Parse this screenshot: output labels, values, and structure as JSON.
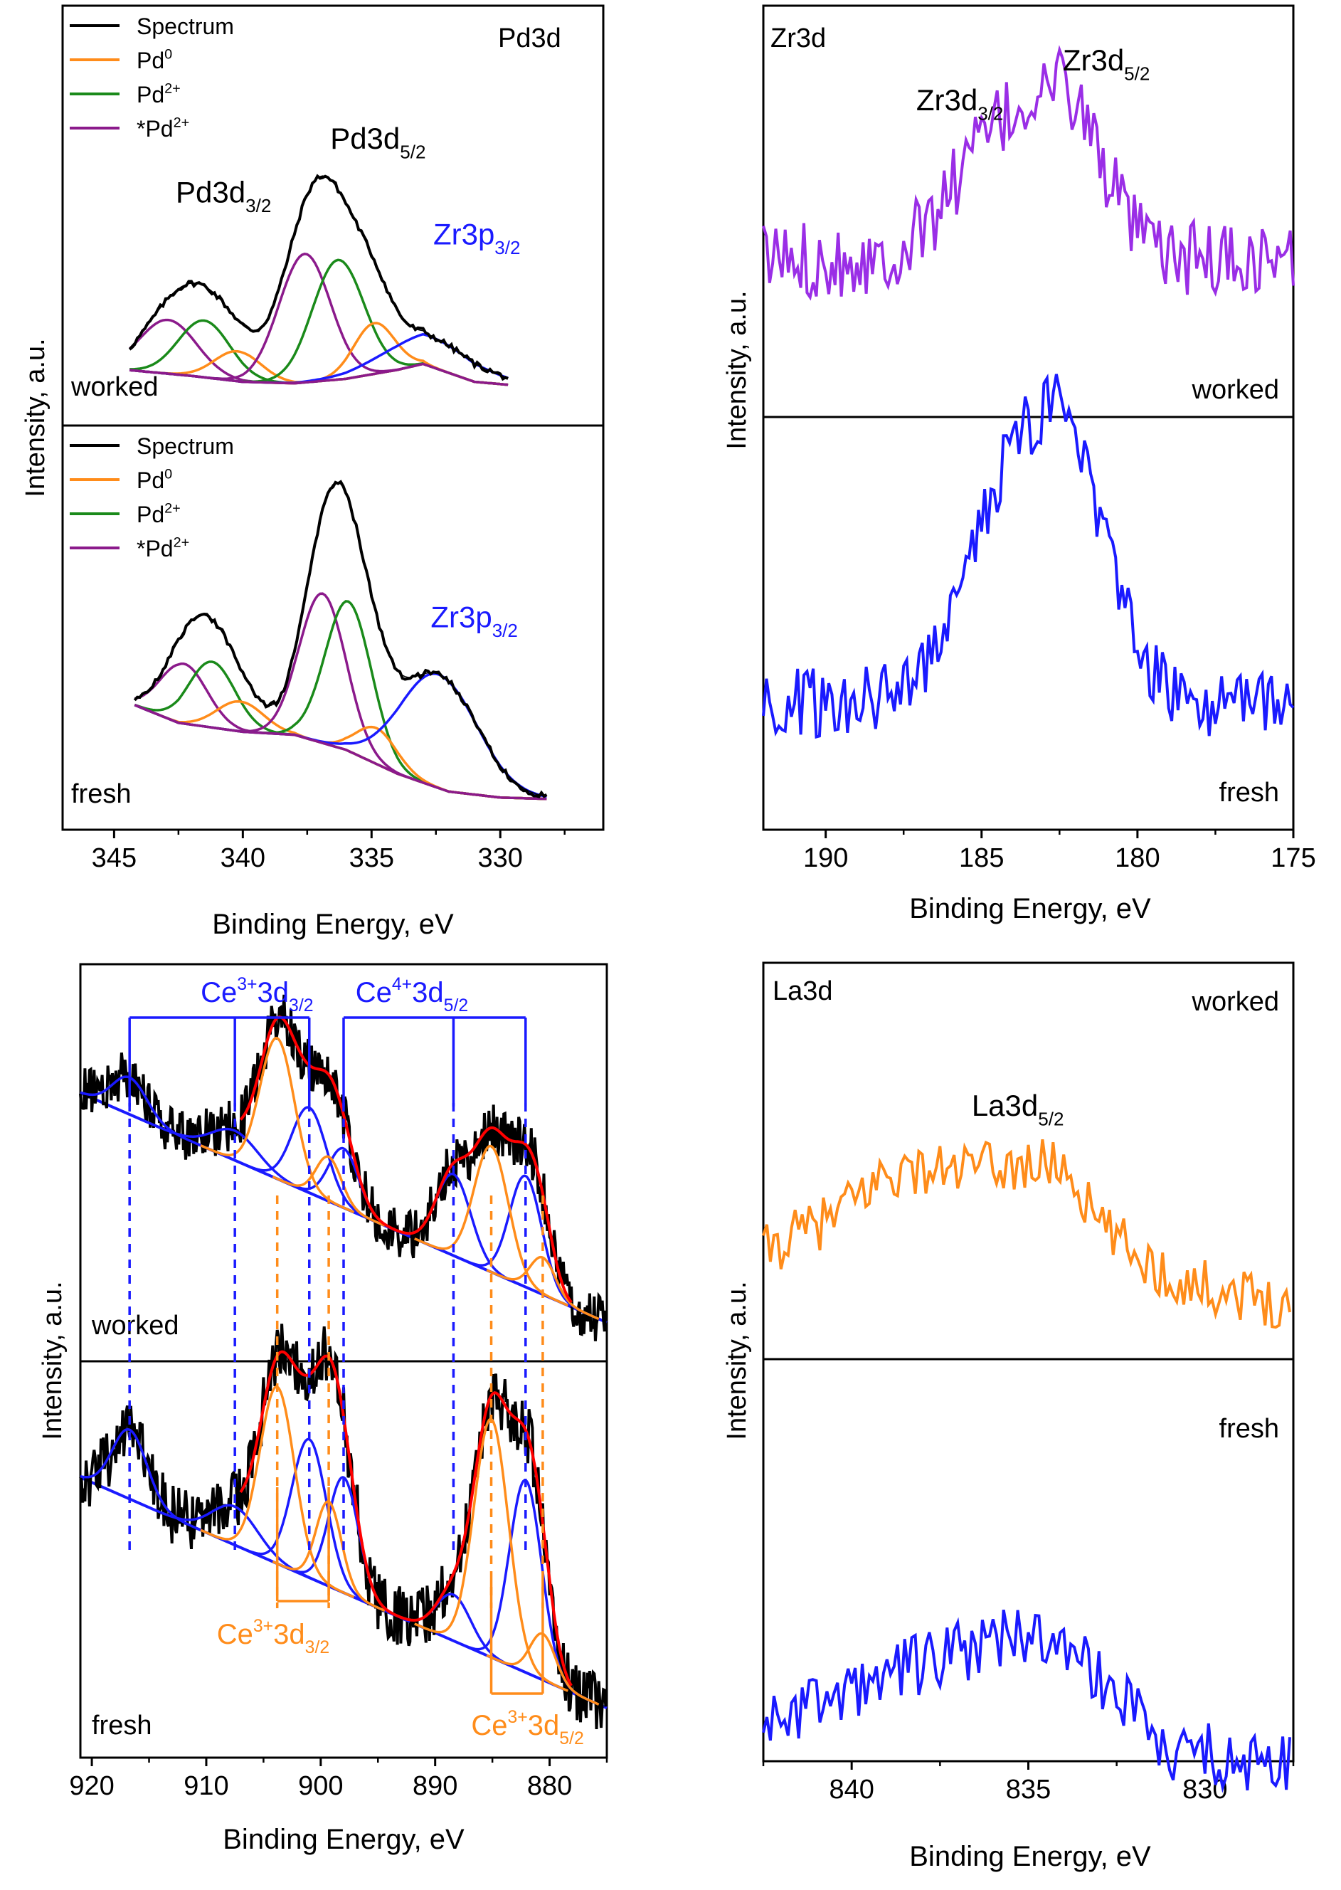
{
  "figure": {
    "ylabel": "Intensity, a.u.",
    "xlabel": "Binding Energy, eV"
  },
  "chart_data": [
    {
      "id": "pd3d",
      "type": "line",
      "title": "Pd3d",
      "xlabel": "Binding Energy, eV",
      "ylabel": "Intensity, a.u.",
      "xlim": [
        347,
        326
      ],
      "xticks": [
        345,
        340,
        335,
        330
      ],
      "panels": [
        "worked",
        "fresh"
      ],
      "worked": {
        "label": "worked",
        "legend": [
          {
            "name": "Spectrum",
            "color": "#000000"
          },
          {
            "name": "Pd",
            "sup": "0",
            "color": "#ff8c1a"
          },
          {
            "name": "Pd",
            "sup": "2+",
            "color": "#1a8a1a"
          },
          {
            "name": "*Pd",
            "sup": "2+",
            "color": "#8b1a8b"
          }
        ],
        "annotations": [
          {
            "base": "Pd3d",
            "sub": "3/2",
            "color": "#000000",
            "x": 341.5,
            "y": 0.62
          },
          {
            "base": "Pd3d",
            "sub": "5/2",
            "color": "#000000",
            "x": 335.5,
            "y": 0.8
          },
          {
            "base": "Zr3p",
            "sub": "3/2",
            "color": "#1a1aff",
            "x": 331.5,
            "y": 0.48
          }
        ],
        "background": [
          [
            344.5,
            0.06
          ],
          [
            342,
            0.04
          ],
          [
            340,
            0.02
          ],
          [
            338,
            0.015
          ],
          [
            336,
            0.03
          ],
          [
            334,
            0.06
          ],
          [
            333,
            0.08
          ],
          [
            331,
            0.02
          ],
          [
            329,
            0.005
          ]
        ],
        "peaks": [
          {
            "name": "*Pd2+",
            "center": 342.9,
            "amp": 0.18,
            "width": 1.1,
            "color": "#8b1a8b"
          },
          {
            "name": "Pd2+",
            "center": 341.5,
            "amp": 0.19,
            "width": 1.0,
            "color": "#1a8a1a"
          },
          {
            "name": "Pd0",
            "center": 340.2,
            "amp": 0.1,
            "width": 0.9,
            "color": "#ff8c1a"
          },
          {
            "name": "*Pd2+",
            "center": 337.6,
            "amp": 0.43,
            "width": 1.0,
            "color": "#8b1a8b"
          },
          {
            "name": "Pd2+",
            "center": 336.3,
            "amp": 0.4,
            "width": 1.0,
            "color": "#1a8a1a"
          },
          {
            "name": "Pd0",
            "center": 334.9,
            "amp": 0.17,
            "width": 0.8,
            "color": "#ff8c1a"
          }
        ],
        "zr_peak": {
          "center": 332.8,
          "amp": 0.1,
          "width": 1.8,
          "color": "#1a1aff"
        }
      },
      "fresh": {
        "label": "fresh",
        "legend": [
          {
            "name": "Spectrum",
            "color": "#000000"
          },
          {
            "name": "Pd",
            "sup": "0",
            "color": "#ff8c1a"
          },
          {
            "name": "Pd",
            "sup": "2+",
            "color": "#1a8a1a"
          },
          {
            "name": "*Pd",
            "sup": "2+",
            "color": "#8b1a8b"
          }
        ],
        "annotations": [
          {
            "base": "Zr3p",
            "sub": "3/2",
            "color": "#1a1aff",
            "x": 331.6,
            "y": 0.58
          }
        ],
        "background": [
          [
            344.5,
            0.33
          ],
          [
            342.5,
            0.26
          ],
          [
            340,
            0.23
          ],
          [
            338,
            0.22
          ],
          [
            336,
            0.17
          ],
          [
            334,
            0.09
          ],
          [
            332,
            0.03
          ],
          [
            330,
            0.01
          ],
          [
            328,
            0.005
          ]
        ],
        "peaks": [
          {
            "name": "*Pd2+",
            "center": 342.3,
            "amp": 0.2,
            "width": 0.9,
            "color": "#8b1a8b"
          },
          {
            "name": "Pd2+",
            "center": 341.2,
            "amp": 0.22,
            "width": 0.9,
            "color": "#1a8a1a"
          },
          {
            "name": "Pd0",
            "center": 340.1,
            "amp": 0.1,
            "width": 0.9,
            "color": "#ff8c1a"
          },
          {
            "name": "*Pd2+",
            "center": 336.9,
            "amp": 0.5,
            "width": 0.9,
            "color": "#8b1a8b"
          },
          {
            "name": "Pd2+",
            "center": 335.9,
            "amp": 0.5,
            "width": 0.9,
            "color": "#1a8a1a"
          },
          {
            "name": "Pd0",
            "center": 334.8,
            "amp": 0.12,
            "width": 0.8,
            "color": "#ff8c1a"
          }
        ],
        "zr_peak": {
          "center": 332.4,
          "amp": 0.38,
          "width": 1.5,
          "color": "#1a1aff"
        }
      }
    },
    {
      "id": "zr3d",
      "type": "line",
      "title": "Zr3d",
      "xlabel": "Binding Energy, eV",
      "ylabel": "Intensity, a.u.",
      "xlim": [
        192,
        175
      ],
      "xticks": [
        190,
        185,
        180,
        175
      ],
      "annotations": [
        {
          "base": "Zr3d",
          "sub": "3/2",
          "color": "#000000",
          "x": 185.5,
          "y": 0.9
        },
        {
          "base": "Zr3d",
          "sub": "5/2",
          "color": "#000000",
          "x": 180.8,
          "y": 0.97
        }
      ],
      "series": [
        {
          "name": "worked",
          "color": "#9a2ee6",
          "baseline": 0.4,
          "peaks": [
            {
              "center": 184.8,
              "amp": 0.28,
              "width": 1.3
            },
            {
              "center": 182.3,
              "amp": 0.4,
              "width": 1.2
            }
          ],
          "noise": 0.1
        },
        {
          "name": "fresh",
          "color": "#1a1aff",
          "baseline": 0.3,
          "peaks": [
            {
              "center": 184.5,
              "amp": 0.45,
              "width": 1.4
            },
            {
              "center": 182.2,
              "amp": 0.62,
              "width": 1.3
            }
          ],
          "noise": 0.09
        }
      ]
    },
    {
      "id": "ce3d",
      "type": "line",
      "title": "",
      "xlabel": "Binding Energy, eV",
      "ylabel": "Intensity, a.u.",
      "xlim": [
        921,
        875
      ],
      "xticks": [
        920,
        910,
        900,
        890,
        880
      ],
      "bracket_labels": [
        {
          "base": "Ce",
          "sup": "3+",
          "rest": "3d",
          "sub": "3/2",
          "color": "#1a1aff",
          "x": 908.0
        },
        {
          "base": "Ce",
          "sup": "4+",
          "rest": "3d",
          "sub": "5/2",
          "color": "#1a1aff",
          "x": 889.5
        },
        {
          "base": "Ce",
          "sup": "3+",
          "rest": "3d",
          "sub": "3/2",
          "color": "#ff8c1a",
          "x": 901.0
        },
        {
          "base": "Ce",
          "sup": "3+",
          "rest": "3d",
          "sub": "5/2",
          "color": "#ff8c1a",
          "x": 882.5
        }
      ],
      "ce4_lines": [
        916.7,
        907.5,
        901.0,
        898.0,
        888.4,
        882.1
      ],
      "ce3_lines": [
        903.8,
        899.3,
        885.1,
        880.6
      ],
      "series": [
        {
          "name": "worked",
          "label": "worked",
          "baseline_left": 0.7,
          "baseline_right": 0.08,
          "ce4": [
            {
              "c": 916.7,
              "a": 0.1,
              "w": 1.5
            },
            {
              "c": 907.5,
              "a": 0.08,
              "w": 2.0
            },
            {
              "c": 901.0,
              "a": 0.23,
              "w": 1.5
            },
            {
              "c": 898.0,
              "a": 0.16,
              "w": 1.3
            },
            {
              "c": 888.4,
              "a": 0.22,
              "w": 1.5
            },
            {
              "c": 882.1,
              "a": 0.3,
              "w": 1.4
            }
          ],
          "ce3": [
            {
              "c": 903.8,
              "a": 0.38,
              "w": 1.5
            },
            {
              "c": 899.3,
              "a": 0.12,
              "w": 1.1
            },
            {
              "c": 885.1,
              "a": 0.34,
              "w": 1.5
            },
            {
              "c": 880.6,
              "a": 0.1,
              "w": 1.1
            }
          ],
          "noise": 0.07
        },
        {
          "name": "fresh",
          "label": "fresh",
          "baseline_left": 0.72,
          "baseline_right": 0.12,
          "ce4": [
            {
              "c": 916.7,
              "a": 0.18,
              "w": 1.5
            },
            {
              "c": 907.5,
              "a": 0.1,
              "w": 2.0
            },
            {
              "c": 901.0,
              "a": 0.36,
              "w": 1.5
            },
            {
              "c": 898.0,
              "a": 0.3,
              "w": 1.3
            },
            {
              "c": 888.4,
              "a": 0.12,
              "w": 1.5
            },
            {
              "c": 882.1,
              "a": 0.5,
              "w": 1.4
            }
          ],
          "ce3": [
            {
              "c": 903.8,
              "a": 0.46,
              "w": 1.5
            },
            {
              "c": 899.3,
              "a": 0.22,
              "w": 1.1
            },
            {
              "c": 885.1,
              "a": 0.62,
              "w": 1.5
            },
            {
              "c": 880.6,
              "a": 0.12,
              "w": 1.1
            }
          ],
          "noise": 0.08
        }
      ]
    },
    {
      "id": "la3d",
      "type": "line",
      "title": "La3d",
      "xlabel": "Binding Energy, eV",
      "ylabel": "Intensity, a.u.",
      "xlim": [
        842.5,
        827.5
      ],
      "xticks": [
        840,
        835,
        830
      ],
      "annotations": [
        {
          "base": "La3d",
          "sub": "5/2",
          "color": "#000000",
          "x": 836.0,
          "y": 0.62
        }
      ],
      "series": [
        {
          "name": "worked",
          "color": "#ff8c1a",
          "plateau": [
            [
              842.5,
              0.42
            ],
            [
              840.5,
              0.5
            ],
            [
              839,
              0.6
            ],
            [
              834,
              0.62
            ],
            [
              833,
              0.48
            ],
            [
              831,
              0.36
            ],
            [
              827.5,
              0.3
            ]
          ],
          "noise": 0.12
        },
        {
          "name": "fresh",
          "color": "#1a1aff",
          "plateau": [
            [
              842.5,
              0.18
            ],
            [
              840.5,
              0.24
            ],
            [
              838,
              0.3
            ],
            [
              835,
              0.36
            ],
            [
              833,
              0.28
            ],
            [
              831,
              0.14
            ],
            [
              827.5,
              0.1
            ]
          ],
          "noise": 0.12
        }
      ]
    }
  ]
}
